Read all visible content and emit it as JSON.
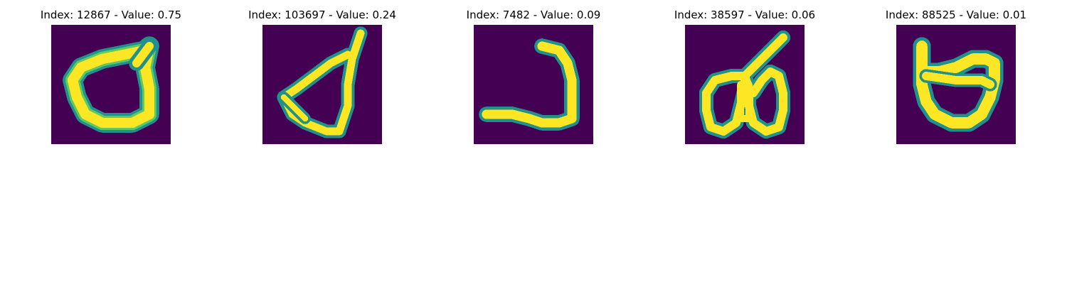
{
  "colors": {
    "background": "#440154",
    "stroke_outer": "#21918c",
    "stroke_mid": "#5ec962",
    "stroke_core": "#fde725"
  },
  "panels": [
    {
      "index": "12867",
      "value": "0.75",
      "title": "Index: 12867 - Value: 0.75"
    },
    {
      "index": "103697",
      "value": "0.24",
      "title": "Index: 103697 - Value: 0.24"
    },
    {
      "index": "7482",
      "value": "0.09",
      "title": "Index: 7482 - Value: 0.09"
    },
    {
      "index": "38597",
      "value": "0.06",
      "title": "Index: 38597 - Value: 0.06"
    },
    {
      "index": "88525",
      "value": "0.01",
      "title": "Index: 88525 - Value: 0.01"
    }
  ]
}
